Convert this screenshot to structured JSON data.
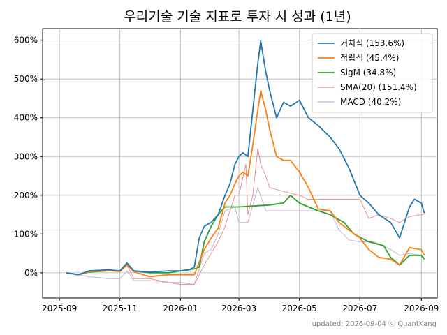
{
  "chart_data": {
    "type": "line",
    "title": "우리기술 기술 지표로 투자 시 성과 (1년)",
    "footer": "updated: 2026-09-04 ⓒ QuantKang",
    "xlabel": "",
    "ylabel": "",
    "grid": true,
    "legend_position": "top-right",
    "x_ticks": [
      "2025-09",
      "2025-11",
      "2026-01",
      "2026-03",
      "2026-05",
      "2026-07",
      "2026-09"
    ],
    "y_ticks": [
      "0%",
      "100%",
      "200%",
      "300%",
      "400%",
      "500%",
      "600%"
    ],
    "xlim": [
      "2025-08-15",
      "2026-09-17"
    ],
    "ylim": [
      -65,
      630
    ],
    "series": [
      {
        "name": "거치식",
        "legend": "거치식 (153.6%)",
        "color": "#1f77b4",
        "width": 1.8,
        "points": [
          [
            "2025-09-08",
            0
          ],
          [
            "2025-09-20",
            -5
          ],
          [
            "2025-10-01",
            5
          ],
          [
            "2025-10-20",
            8
          ],
          [
            "2025-11-01",
            5
          ],
          [
            "2025-11-08",
            25
          ],
          [
            "2025-11-15",
            5
          ],
          [
            "2025-12-01",
            2
          ],
          [
            "2025-12-20",
            5
          ],
          [
            "2026-01-01",
            5
          ],
          [
            "2026-01-10",
            8
          ],
          [
            "2026-01-15",
            15
          ],
          [
            "2026-01-20",
            90
          ],
          [
            "2026-01-25",
            120
          ],
          [
            "2026-02-01",
            130
          ],
          [
            "2026-02-08",
            150
          ],
          [
            "2026-02-15",
            200
          ],
          [
            "2026-02-20",
            230
          ],
          [
            "2026-02-25",
            280
          ],
          [
            "2026-03-01",
            300
          ],
          [
            "2026-03-05",
            310
          ],
          [
            "2026-03-10",
            300
          ],
          [
            "2026-03-15",
            420
          ],
          [
            "2026-03-20",
            540
          ],
          [
            "2026-03-23",
            598
          ],
          [
            "2026-03-28",
            520
          ],
          [
            "2026-04-01",
            470
          ],
          [
            "2026-04-08",
            400
          ],
          [
            "2026-04-15",
            440
          ],
          [
            "2026-04-22",
            430
          ],
          [
            "2026-05-01",
            445
          ],
          [
            "2026-05-10",
            400
          ],
          [
            "2026-05-20",
            380
          ],
          [
            "2026-06-01",
            350
          ],
          [
            "2026-06-10",
            320
          ],
          [
            "2026-06-20",
            270
          ],
          [
            "2026-07-01",
            200
          ],
          [
            "2026-07-10",
            180
          ],
          [
            "2026-07-20",
            150
          ],
          [
            "2026-08-01",
            130
          ],
          [
            "2026-08-10",
            90
          ],
          [
            "2026-08-20",
            170
          ],
          [
            "2026-08-25",
            190
          ],
          [
            "2026-09-01",
            180
          ],
          [
            "2026-09-04",
            154
          ]
        ]
      },
      {
        "name": "적립식",
        "legend": "적립식 (45.4%)",
        "color": "#ff7f0e",
        "width": 1.8,
        "points": [
          [
            "2025-09-08",
            0
          ],
          [
            "2025-09-20",
            -5
          ],
          [
            "2025-10-01",
            3
          ],
          [
            "2025-10-20",
            6
          ],
          [
            "2025-11-01",
            3
          ],
          [
            "2025-11-08",
            20
          ],
          [
            "2025-11-15",
            3
          ],
          [
            "2025-12-01",
            -10
          ],
          [
            "2025-12-20",
            -5
          ],
          [
            "2026-01-01",
            -5
          ],
          [
            "2026-01-15",
            -5
          ],
          [
            "2026-01-25",
            60
          ],
          [
            "2026-02-01",
            90
          ],
          [
            "2026-02-08",
            115
          ],
          [
            "2026-02-15",
            180
          ],
          [
            "2026-02-20",
            200
          ],
          [
            "2026-02-25",
            230
          ],
          [
            "2026-03-01",
            250
          ],
          [
            "2026-03-05",
            260
          ],
          [
            "2026-03-10",
            250
          ],
          [
            "2026-03-15",
            330
          ],
          [
            "2026-03-20",
            420
          ],
          [
            "2026-03-23",
            470
          ],
          [
            "2026-03-28",
            420
          ],
          [
            "2026-04-01",
            370
          ],
          [
            "2026-04-08",
            300
          ],
          [
            "2026-04-15",
            290
          ],
          [
            "2026-04-22",
            290
          ],
          [
            "2026-05-01",
            260
          ],
          [
            "2026-05-10",
            220
          ],
          [
            "2026-05-20",
            165
          ],
          [
            "2026-06-01",
            160
          ],
          [
            "2026-06-10",
            130
          ],
          [
            "2026-06-20",
            110
          ],
          [
            "2026-07-01",
            90
          ],
          [
            "2026-07-10",
            60
          ],
          [
            "2026-07-20",
            40
          ],
          [
            "2026-08-01",
            35
          ],
          [
            "2026-08-10",
            20
          ],
          [
            "2026-08-20",
            65
          ],
          [
            "2026-09-01",
            60
          ],
          [
            "2026-09-04",
            45
          ]
        ]
      },
      {
        "name": "SigM",
        "legend": "SigM (34.8%)",
        "color": "#2ca02c",
        "width": 1.8,
        "points": [
          [
            "2025-09-08",
            0
          ],
          [
            "2025-09-20",
            -5
          ],
          [
            "2025-10-01",
            2
          ],
          [
            "2025-10-20",
            5
          ],
          [
            "2025-11-01",
            5
          ],
          [
            "2025-11-08",
            25
          ],
          [
            "2025-11-15",
            5
          ],
          [
            "2025-12-01",
            0
          ],
          [
            "2025-12-20",
            0
          ],
          [
            "2026-01-01",
            5
          ],
          [
            "2026-01-15",
            10
          ],
          [
            "2026-01-20",
            15
          ],
          [
            "2026-01-25",
            80
          ],
          [
            "2026-02-01",
            120
          ],
          [
            "2026-02-08",
            150
          ],
          [
            "2026-02-15",
            170
          ],
          [
            "2026-03-01",
            170
          ],
          [
            "2026-04-01",
            175
          ],
          [
            "2026-04-15",
            180
          ],
          [
            "2026-04-22",
            200
          ],
          [
            "2026-05-01",
            180
          ],
          [
            "2026-05-10",
            170
          ],
          [
            "2026-05-20",
            160
          ],
          [
            "2026-06-01",
            150
          ],
          [
            "2026-06-15",
            130
          ],
          [
            "2026-06-25",
            100
          ],
          [
            "2026-07-10",
            80
          ],
          [
            "2026-07-25",
            70
          ],
          [
            "2026-08-01",
            40
          ],
          [
            "2026-08-10",
            20
          ],
          [
            "2026-08-20",
            45
          ],
          [
            "2026-09-01",
            45
          ],
          [
            "2026-09-04",
            35
          ]
        ]
      },
      {
        "name": "SMA(20)",
        "legend": "SMA(20)  (151.4%)",
        "color": "#e8908f",
        "width": 1.0,
        "points": [
          [
            "2025-09-08",
            0
          ],
          [
            "2025-09-20",
            -5
          ],
          [
            "2025-10-01",
            3
          ],
          [
            "2025-10-20",
            5
          ],
          [
            "2025-11-01",
            3
          ],
          [
            "2025-11-08",
            20
          ],
          [
            "2025-11-15",
            -15
          ],
          [
            "2025-12-01",
            -15
          ],
          [
            "2025-12-20",
            -25
          ],
          [
            "2026-01-01",
            -30
          ],
          [
            "2026-01-15",
            -30
          ],
          [
            "2026-01-25",
            20
          ],
          [
            "2026-02-01",
            50
          ],
          [
            "2026-02-08",
            80
          ],
          [
            "2026-02-15",
            120
          ],
          [
            "2026-02-20",
            160
          ],
          [
            "2026-02-25",
            200
          ],
          [
            "2026-03-01",
            200
          ],
          [
            "2026-03-08",
            280
          ],
          [
            "2026-03-10",
            150
          ],
          [
            "2026-03-15",
            200
          ],
          [
            "2026-03-20",
            320
          ],
          [
            "2026-03-23",
            280
          ],
          [
            "2026-03-28",
            250
          ],
          [
            "2026-04-01",
            220
          ],
          [
            "2026-04-15",
            210
          ],
          [
            "2026-05-01",
            200
          ],
          [
            "2026-05-10",
            190
          ],
          [
            "2026-05-20",
            190
          ],
          [
            "2026-06-01",
            190
          ],
          [
            "2026-06-15",
            190
          ],
          [
            "2026-07-01",
            190
          ],
          [
            "2026-07-10",
            140
          ],
          [
            "2026-07-20",
            150
          ],
          [
            "2026-08-01",
            140
          ],
          [
            "2026-08-10",
            130
          ],
          [
            "2026-08-20",
            145
          ],
          [
            "2026-09-01",
            150
          ],
          [
            "2026-09-04",
            151
          ]
        ]
      },
      {
        "name": "MACD",
        "legend": "MACD (40.2%)",
        "color": "#c5b0d5",
        "width": 1.0,
        "points": [
          [
            "2025-09-08",
            0
          ],
          [
            "2025-09-20",
            -5
          ],
          [
            "2025-10-01",
            -10
          ],
          [
            "2025-10-20",
            -15
          ],
          [
            "2025-11-01",
            -15
          ],
          [
            "2025-11-08",
            5
          ],
          [
            "2025-11-15",
            -20
          ],
          [
            "2025-12-01",
            -20
          ],
          [
            "2025-12-20",
            -25
          ],
          [
            "2026-01-01",
            -25
          ],
          [
            "2026-01-15",
            -30
          ],
          [
            "2026-01-25",
            50
          ],
          [
            "2026-02-01",
            60
          ],
          [
            "2026-02-08",
            100
          ],
          [
            "2026-02-15",
            160
          ],
          [
            "2026-02-25",
            170
          ],
          [
            "2026-03-01",
            130
          ],
          [
            "2026-03-10",
            130
          ],
          [
            "2026-03-20",
            220
          ],
          [
            "2026-03-28",
            160
          ],
          [
            "2026-04-15",
            160
          ],
          [
            "2026-05-01",
            160
          ],
          [
            "2026-05-20",
            160
          ],
          [
            "2026-06-01",
            160
          ],
          [
            "2026-06-10",
            110
          ],
          [
            "2026-06-20",
            85
          ],
          [
            "2026-07-01",
            80
          ],
          [
            "2026-07-15",
            80
          ],
          [
            "2026-08-01",
            60
          ],
          [
            "2026-08-10",
            45
          ],
          [
            "2026-08-20",
            50
          ],
          [
            "2026-09-01",
            45
          ],
          [
            "2026-09-04",
            40
          ]
        ]
      }
    ]
  }
}
